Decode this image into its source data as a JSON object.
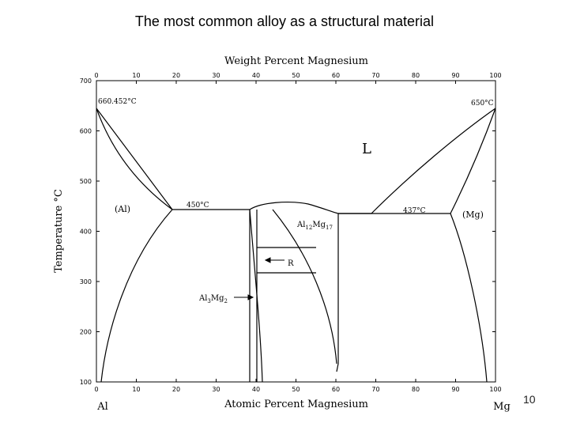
{
  "slide": {
    "title": "The most common alloy as a structural material",
    "page_number": "10"
  },
  "diagram": {
    "top_axis_title": "Weight Percent Magnesium",
    "bottom_axis_title": "Atomic Percent Magnesium",
    "y_axis_title": "Temperature °C",
    "left_element": "Al",
    "right_element": "Mg",
    "top_ticks": [
      "0",
      "10",
      "20",
      "30",
      "40",
      "50",
      "60",
      "70",
      "80",
      "90",
      "100"
    ],
    "bottom_ticks": [
      "0",
      "10",
      "20",
      "30",
      "40",
      "50",
      "60",
      "70",
      "80",
      "90",
      "100"
    ],
    "y_ticks": [
      "100",
      "200",
      "300",
      "400",
      "500",
      "600",
      "700"
    ],
    "labels": {
      "liquid": "L",
      "al_phase": "(Al)",
      "mg_phase": "(Mg)",
      "r_phase": "R",
      "al_melting": "660.452°C",
      "mg_melting": "650°C",
      "eutectic_left": "450°C",
      "eutectic_right": "437°C",
      "compound_1_base": "Al",
      "compound_1_sub_a": "12",
      "compound_1_mid": "Mg",
      "compound_1_sub_b": "17",
      "compound_2_base": "Al",
      "compound_2_sub_a": "3",
      "compound_2_mid": "Mg",
      "compound_2_sub_b": "2"
    },
    "colors": {
      "ink": "#000000",
      "background": "#ffffff"
    }
  }
}
